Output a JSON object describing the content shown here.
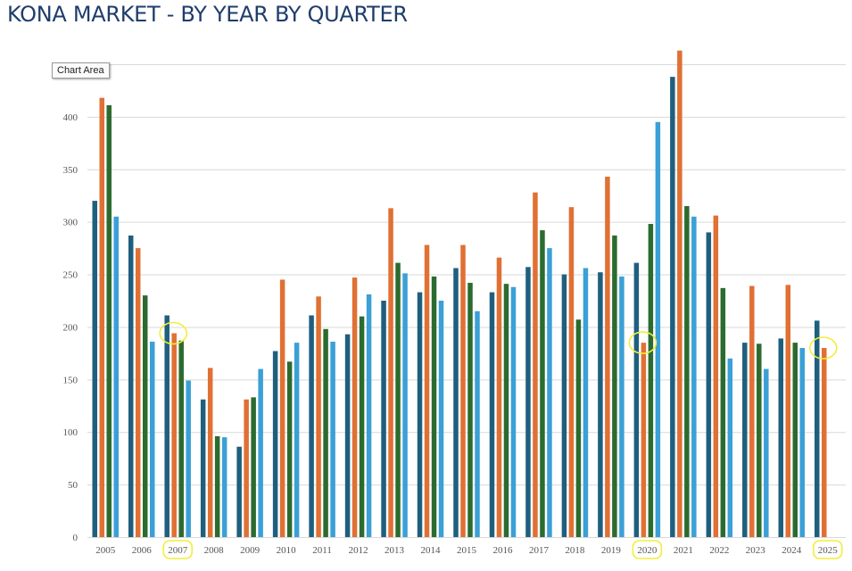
{
  "header": {
    "title": "KONA MARKET - BY YEAR BY QUARTER"
  },
  "tooltip": {
    "label": "Chart Area"
  },
  "chart_data": {
    "type": "bar",
    "title": "KONA MARKET - BY YEAR BY QUARTER",
    "xlabel": "",
    "ylabel": "",
    "categories": [
      "2005",
      "2006",
      "2007",
      "2008",
      "2009",
      "2010",
      "2011",
      "2012",
      "2013",
      "2014",
      "2015",
      "2016",
      "2017",
      "2018",
      "2019",
      "2020",
      "2021",
      "2022",
      "2023",
      "2024",
      "2025"
    ],
    "series": [
      {
        "color": "#1f5f7e",
        "values": [
          320,
          287,
          211,
          131,
          86,
          177,
          211,
          193,
          225,
          233,
          256,
          233,
          257,
          250,
          252,
          261,
          438,
          290,
          185,
          189,
          206
        ]
      },
      {
        "color": "#e07034",
        "values": [
          418,
          275,
          194,
          161,
          131,
          245,
          229,
          247,
          313,
          278,
          278,
          266,
          328,
          314,
          343,
          185,
          463,
          306,
          239,
          240,
          180
        ]
      },
      {
        "color": "#2c6b2f",
        "values": [
          411,
          230,
          187,
          96,
          133,
          167,
          198,
          210,
          261,
          248,
          242,
          241,
          292,
          207,
          287,
          298,
          315,
          237,
          184,
          185,
          null
        ]
      },
      {
        "color": "#3ba0d6",
        "values": [
          305,
          186,
          149,
          95,
          160,
          185,
          186,
          231,
          251,
          225,
          215,
          238,
          275,
          256,
          248,
          395,
          305,
          170,
          160,
          180,
          null
        ]
      }
    ],
    "ylim": [
      0,
      450
    ],
    "yticks": [
      0,
      50,
      100,
      150,
      200,
      250,
      300,
      350,
      400
    ],
    "grid": true,
    "legend": "none",
    "highlighted_categories": [
      "2007",
      "2020",
      "2025"
    ],
    "highlight_color": "#f2ee3a"
  }
}
